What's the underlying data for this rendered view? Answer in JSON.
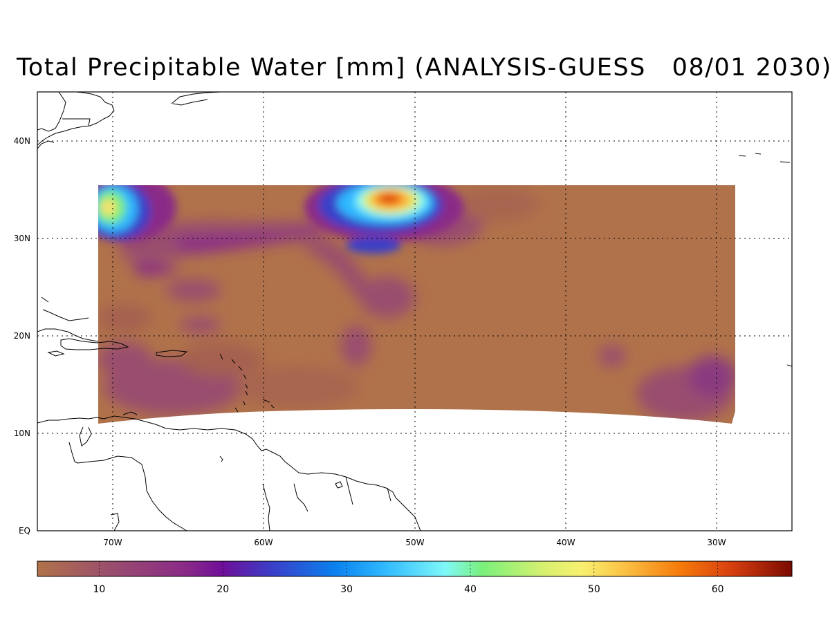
{
  "title": "Total Precipitable Water [mm] (ANALYSIS-GUESS   08/01 2030)",
  "map": {
    "lon_range": [
      -75,
      -25
    ],
    "lat_range": [
      0,
      45
    ],
    "lat_labels": [
      "EQ",
      "10N",
      "20N",
      "30N",
      "40N"
    ],
    "lon_labels": [
      "70W",
      "60W",
      "50W",
      "40W",
      "30W"
    ],
    "gridlines": "dotted"
  },
  "colorbar": {
    "range": [
      5,
      66
    ],
    "tick_labels": [
      "10",
      "20",
      "30",
      "40",
      "50",
      "60"
    ],
    "stops": [
      {
        "value": 5,
        "color": "#b0724a"
      },
      {
        "value": 11,
        "color": "#9a4d6e"
      },
      {
        "value": 17,
        "color": "#8a2a88"
      },
      {
        "value": 20,
        "color": "#6f0f9a"
      },
      {
        "value": 24,
        "color": "#3a3fc8"
      },
      {
        "value": 29,
        "color": "#0a80ee"
      },
      {
        "value": 33,
        "color": "#2fb8ff"
      },
      {
        "value": 38,
        "color": "#7ff8f8"
      },
      {
        "value": 41,
        "color": "#7af07a"
      },
      {
        "value": 46,
        "color": "#d8f070"
      },
      {
        "value": 49,
        "color": "#f8f070"
      },
      {
        "value": 52,
        "color": "#fbc84a"
      },
      {
        "value": 57,
        "color": "#f57a0a"
      },
      {
        "value": 61,
        "color": "#d84010"
      },
      {
        "value": 66,
        "color": "#7a0a00"
      }
    ]
  },
  "field": {
    "background_value": 5,
    "features": [
      {
        "name": "northwest-moist-blob",
        "lon": -69.8,
        "lat": 33.2,
        "peak": 49
      },
      {
        "name": "central-moist-plume",
        "lon": -52.0,
        "lat": 34.0,
        "peak": 60
      },
      {
        "name": "subtropical-moisture-band",
        "lon": -62.0,
        "lat": 29.0,
        "peak": 18
      },
      {
        "name": "caribbean-moisture",
        "lon": -64.0,
        "lat": 15.0,
        "peak": 13
      },
      {
        "name": "eastern-moisture",
        "lon": -31.0,
        "lat": 14.0,
        "peak": 12
      }
    ]
  }
}
